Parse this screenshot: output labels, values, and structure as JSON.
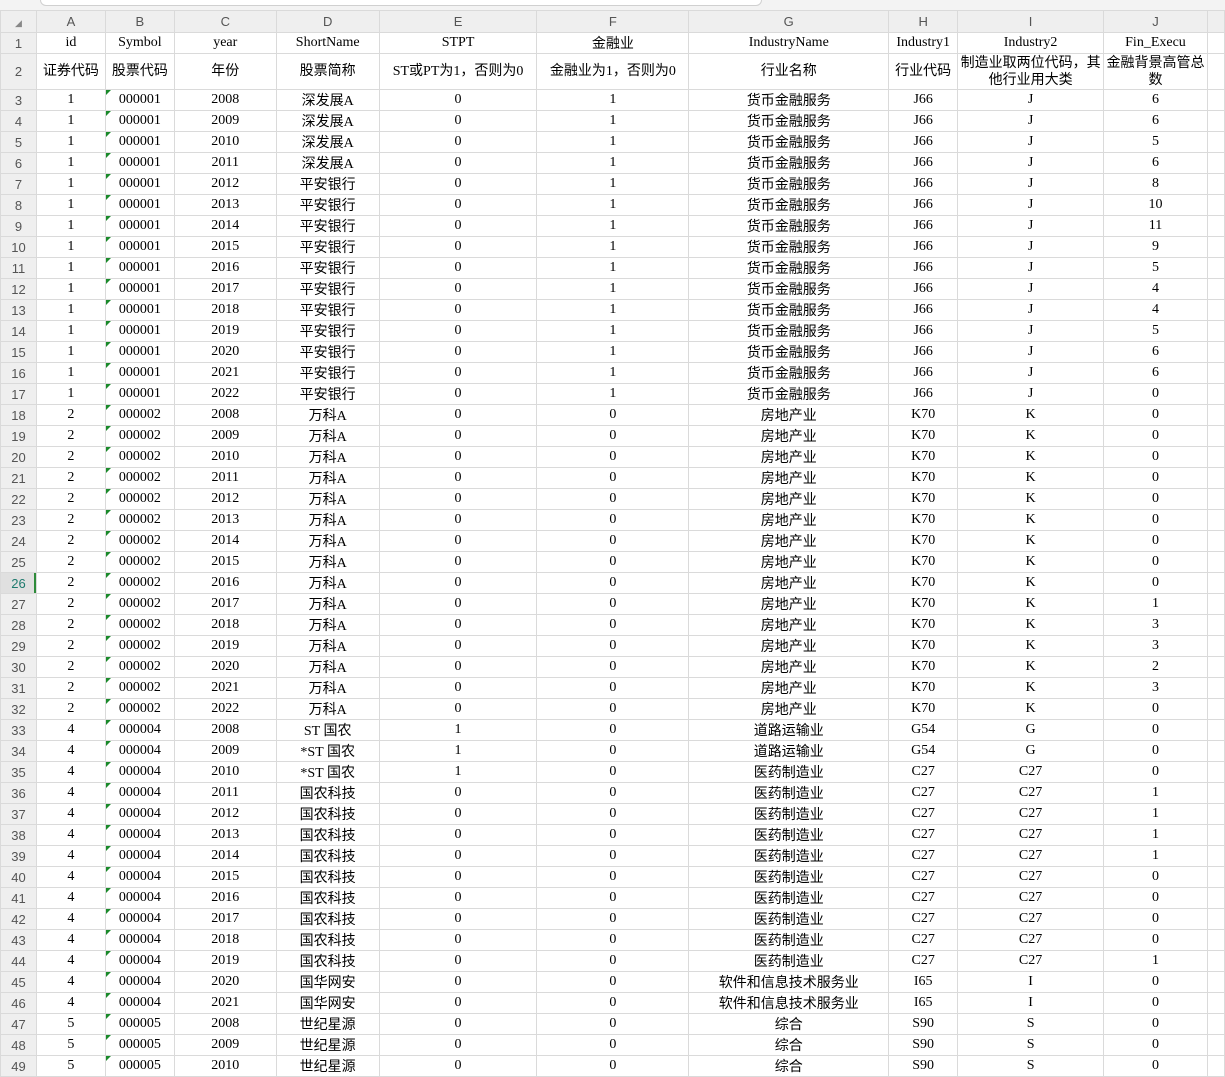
{
  "column_letters": [
    "A",
    "B",
    "C",
    "D",
    "E",
    "F",
    "G",
    "H",
    "I",
    "J"
  ],
  "selected_row": 26,
  "header_row1": [
    "id",
    "Symbol",
    "year",
    "ShortName",
    "STPT",
    "金融业",
    "IndustryName",
    "Industry1",
    "Industry2",
    "Fin_Execu"
  ],
  "header_row2": [
    "证券代码",
    "股票代码",
    "年份",
    "股票简称",
    "ST或PT为1，否则为0",
    "金融业为1，否则为0",
    "行业名称",
    "行业代码",
    "制造业取两位代码，其他行业用大类",
    "金融背景高管总数"
  ],
  "rows": [
    [
      "1",
      "000001",
      "2008",
      "深发展A",
      "0",
      "1",
      "货币金融服务",
      "J66",
      "J",
      "6"
    ],
    [
      "1",
      "000001",
      "2009",
      "深发展A",
      "0",
      "1",
      "货币金融服务",
      "J66",
      "J",
      "6"
    ],
    [
      "1",
      "000001",
      "2010",
      "深发展A",
      "0",
      "1",
      "货币金融服务",
      "J66",
      "J",
      "5"
    ],
    [
      "1",
      "000001",
      "2011",
      "深发展A",
      "0",
      "1",
      "货币金融服务",
      "J66",
      "J",
      "6"
    ],
    [
      "1",
      "000001",
      "2012",
      "平安银行",
      "0",
      "1",
      "货币金融服务",
      "J66",
      "J",
      "8"
    ],
    [
      "1",
      "000001",
      "2013",
      "平安银行",
      "0",
      "1",
      "货币金融服务",
      "J66",
      "J",
      "10"
    ],
    [
      "1",
      "000001",
      "2014",
      "平安银行",
      "0",
      "1",
      "货币金融服务",
      "J66",
      "J",
      "11"
    ],
    [
      "1",
      "000001",
      "2015",
      "平安银行",
      "0",
      "1",
      "货币金融服务",
      "J66",
      "J",
      "9"
    ],
    [
      "1",
      "000001",
      "2016",
      "平安银行",
      "0",
      "1",
      "货币金融服务",
      "J66",
      "J",
      "5"
    ],
    [
      "1",
      "000001",
      "2017",
      "平安银行",
      "0",
      "1",
      "货币金融服务",
      "J66",
      "J",
      "4"
    ],
    [
      "1",
      "000001",
      "2018",
      "平安银行",
      "0",
      "1",
      "货币金融服务",
      "J66",
      "J",
      "4"
    ],
    [
      "1",
      "000001",
      "2019",
      "平安银行",
      "0",
      "1",
      "货币金融服务",
      "J66",
      "J",
      "5"
    ],
    [
      "1",
      "000001",
      "2020",
      "平安银行",
      "0",
      "1",
      "货币金融服务",
      "J66",
      "J",
      "6"
    ],
    [
      "1",
      "000001",
      "2021",
      "平安银行",
      "0",
      "1",
      "货币金融服务",
      "J66",
      "J",
      "6"
    ],
    [
      "1",
      "000001",
      "2022",
      "平安银行",
      "0",
      "1",
      "货币金融服务",
      "J66",
      "J",
      "0"
    ],
    [
      "2",
      "000002",
      "2008",
      "万科A",
      "0",
      "0",
      "房地产业",
      "K70",
      "K",
      "0"
    ],
    [
      "2",
      "000002",
      "2009",
      "万科A",
      "0",
      "0",
      "房地产业",
      "K70",
      "K",
      "0"
    ],
    [
      "2",
      "000002",
      "2010",
      "万科A",
      "0",
      "0",
      "房地产业",
      "K70",
      "K",
      "0"
    ],
    [
      "2",
      "000002",
      "2011",
      "万科A",
      "0",
      "0",
      "房地产业",
      "K70",
      "K",
      "0"
    ],
    [
      "2",
      "000002",
      "2012",
      "万科A",
      "0",
      "0",
      "房地产业",
      "K70",
      "K",
      "0"
    ],
    [
      "2",
      "000002",
      "2013",
      "万科A",
      "0",
      "0",
      "房地产业",
      "K70",
      "K",
      "0"
    ],
    [
      "2",
      "000002",
      "2014",
      "万科A",
      "0",
      "0",
      "房地产业",
      "K70",
      "K",
      "0"
    ],
    [
      "2",
      "000002",
      "2015",
      "万科A",
      "0",
      "0",
      "房地产业",
      "K70",
      "K",
      "0"
    ],
    [
      "2",
      "000002",
      "2016",
      "万科A",
      "0",
      "0",
      "房地产业",
      "K70",
      "K",
      "0"
    ],
    [
      "2",
      "000002",
      "2017",
      "万科A",
      "0",
      "0",
      "房地产业",
      "K70",
      "K",
      "1"
    ],
    [
      "2",
      "000002",
      "2018",
      "万科A",
      "0",
      "0",
      "房地产业",
      "K70",
      "K",
      "3"
    ],
    [
      "2",
      "000002",
      "2019",
      "万科A",
      "0",
      "0",
      "房地产业",
      "K70",
      "K",
      "3"
    ],
    [
      "2",
      "000002",
      "2020",
      "万科A",
      "0",
      "0",
      "房地产业",
      "K70",
      "K",
      "2"
    ],
    [
      "2",
      "000002",
      "2021",
      "万科A",
      "0",
      "0",
      "房地产业",
      "K70",
      "K",
      "3"
    ],
    [
      "2",
      "000002",
      "2022",
      "万科A",
      "0",
      "0",
      "房地产业",
      "K70",
      "K",
      "0"
    ],
    [
      "4",
      "000004",
      "2008",
      "ST 国农",
      "1",
      "0",
      "道路运输业",
      "G54",
      "G",
      "0"
    ],
    [
      "4",
      "000004",
      "2009",
      "*ST 国农",
      "1",
      "0",
      "道路运输业",
      "G54",
      "G",
      "0"
    ],
    [
      "4",
      "000004",
      "2010",
      "*ST 国农",
      "1",
      "0",
      "医药制造业",
      "C27",
      "C27",
      "0"
    ],
    [
      "4",
      "000004",
      "2011",
      "国农科技",
      "0",
      "0",
      "医药制造业",
      "C27",
      "C27",
      "1"
    ],
    [
      "4",
      "000004",
      "2012",
      "国农科技",
      "0",
      "0",
      "医药制造业",
      "C27",
      "C27",
      "1"
    ],
    [
      "4",
      "000004",
      "2013",
      "国农科技",
      "0",
      "0",
      "医药制造业",
      "C27",
      "C27",
      "1"
    ],
    [
      "4",
      "000004",
      "2014",
      "国农科技",
      "0",
      "0",
      "医药制造业",
      "C27",
      "C27",
      "1"
    ],
    [
      "4",
      "000004",
      "2015",
      "国农科技",
      "0",
      "0",
      "医药制造业",
      "C27",
      "C27",
      "0"
    ],
    [
      "4",
      "000004",
      "2016",
      "国农科技",
      "0",
      "0",
      "医药制造业",
      "C27",
      "C27",
      "0"
    ],
    [
      "4",
      "000004",
      "2017",
      "国农科技",
      "0",
      "0",
      "医药制造业",
      "C27",
      "C27",
      "0"
    ],
    [
      "4",
      "000004",
      "2018",
      "国农科技",
      "0",
      "0",
      "医药制造业",
      "C27",
      "C27",
      "0"
    ],
    [
      "4",
      "000004",
      "2019",
      "国农科技",
      "0",
      "0",
      "医药制造业",
      "C27",
      "C27",
      "1"
    ],
    [
      "4",
      "000004",
      "2020",
      "国华网安",
      "0",
      "0",
      "软件和信息技术服务业",
      "I65",
      "I",
      "0"
    ],
    [
      "4",
      "000004",
      "2021",
      "国华网安",
      "0",
      "0",
      "软件和信息技术服务业",
      "I65",
      "I",
      "0"
    ],
    [
      "5",
      "000005",
      "2008",
      "世纪星源",
      "0",
      "0",
      "综合",
      "S90",
      "S",
      "0"
    ],
    [
      "5",
      "000005",
      "2009",
      "世纪星源",
      "0",
      "0",
      "综合",
      "S90",
      "S",
      "0"
    ],
    [
      "5",
      "000005",
      "2010",
      "世纪星源",
      "0",
      "0",
      "综合",
      "S90",
      "S",
      "0"
    ]
  ],
  "colors": {
    "header_bg": "#efefef",
    "grid": "#dadada",
    "text_as_number_marker": "#1a8a2a",
    "selected_row_accent": "#2e8b3a"
  }
}
